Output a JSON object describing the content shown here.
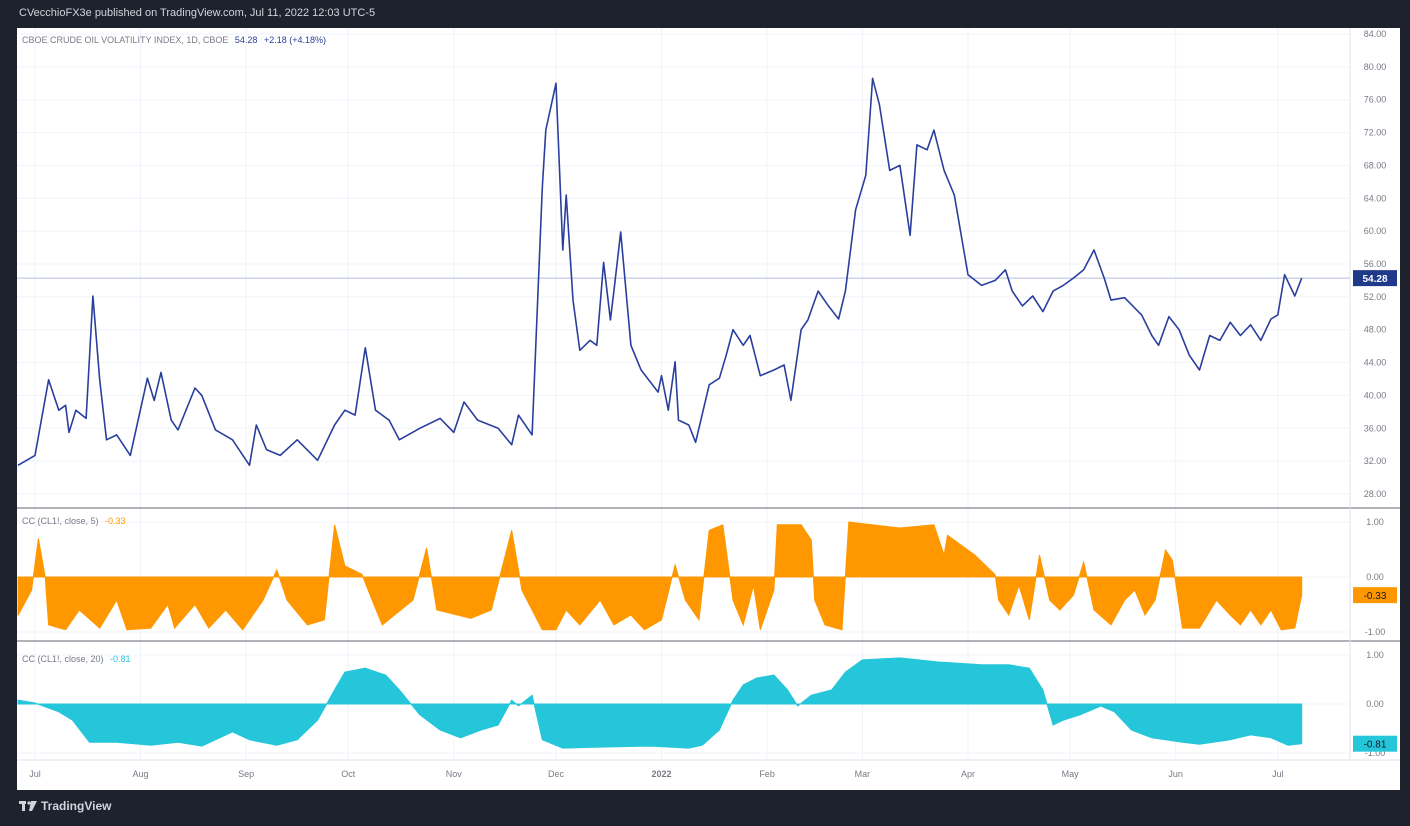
{
  "header": {
    "published": "CVecchioFX3e published on TradingView.com, Jul 11, 2022 12:03 UTC-5"
  },
  "footer": {
    "logo": "TradingView"
  },
  "colors": {
    "price": "#2a3f9d",
    "cc5": "#ff9800",
    "cc20": "#26c6da",
    "last_badge": "#1f3a8a"
  },
  "chart_data": [
    {
      "type": "line",
      "legend": {
        "title": "CBOE CRUDE OIL VOLATILITY INDEX, 1D, CBOE",
        "last": "54.28",
        "change": "+2.18 (+4.18%)"
      },
      "last_value_label": "54.28",
      "ylim": [
        27,
        85
      ],
      "yticks": [
        "28.00",
        "32.00",
        "36.00",
        "40.00",
        "44.00",
        "48.00",
        "52.00",
        "56.00",
        "60.00",
        "64.00",
        "68.00",
        "72.00",
        "76.00",
        "80.00",
        "84.00"
      ],
      "last_value": 54.28,
      "points": [
        [
          "2021-06-26",
          31.5
        ],
        [
          "2021-07-01",
          32.7
        ],
        [
          "2021-07-05",
          41.9
        ],
        [
          "2021-07-08",
          38.2
        ],
        [
          "2021-07-10",
          38.8
        ],
        [
          "2021-07-11",
          35.5
        ],
        [
          "2021-07-13",
          38.2
        ],
        [
          "2021-07-16",
          37.2
        ],
        [
          "2021-07-18",
          52.1
        ],
        [
          "2021-07-20",
          41.9
        ],
        [
          "2021-07-22",
          34.6
        ],
        [
          "2021-07-25",
          35.2
        ],
        [
          "2021-07-29",
          32.7
        ],
        [
          "2021-08-03",
          42.1
        ],
        [
          "2021-08-05",
          39.4
        ],
        [
          "2021-08-07",
          42.8
        ],
        [
          "2021-08-10",
          37.0
        ],
        [
          "2021-08-12",
          35.8
        ],
        [
          "2021-08-17",
          40.9
        ],
        [
          "2021-08-19",
          40.0
        ],
        [
          "2021-08-23",
          35.8
        ],
        [
          "2021-08-28",
          34.6
        ],
        [
          "2021-09-02",
          31.5
        ],
        [
          "2021-09-04",
          36.4
        ],
        [
          "2021-09-07",
          33.4
        ],
        [
          "2021-09-11",
          32.7
        ],
        [
          "2021-09-16",
          34.6
        ],
        [
          "2021-09-22",
          32.1
        ],
        [
          "2021-09-27",
          36.4
        ],
        [
          "2021-09-30",
          38.2
        ],
        [
          "2021-10-03",
          37.6
        ],
        [
          "2021-10-06",
          45.8
        ],
        [
          "2021-10-09",
          38.2
        ],
        [
          "2021-10-13",
          37.0
        ],
        [
          "2021-10-16",
          34.6
        ],
        [
          "2021-10-22",
          36.0
        ],
        [
          "2021-10-28",
          37.2
        ],
        [
          "2021-11-01",
          35.5
        ],
        [
          "2021-11-04",
          39.2
        ],
        [
          "2021-11-08",
          37.0
        ],
        [
          "2021-11-14",
          36.0
        ],
        [
          "2021-11-18",
          34.0
        ],
        [
          "2021-11-20",
          37.6
        ],
        [
          "2021-11-24",
          35.2
        ],
        [
          "2021-11-27",
          65.3
        ],
        [
          "2021-11-28",
          72.3
        ],
        [
          "2021-12-01",
          78.0
        ],
        [
          "2021-12-03",
          57.7
        ],
        [
          "2021-12-04",
          64.4
        ],
        [
          "2021-12-06",
          51.6
        ],
        [
          "2021-12-08",
          45.5
        ],
        [
          "2021-12-11",
          46.7
        ],
        [
          "2021-12-13",
          46.1
        ],
        [
          "2021-12-15",
          56.2
        ],
        [
          "2021-12-17",
          49.2
        ],
        [
          "2021-12-18",
          52.7
        ],
        [
          "2021-12-20",
          59.9
        ],
        [
          "2021-12-23",
          46.1
        ],
        [
          "2021-12-26",
          43.1
        ],
        [
          "2021-12-31",
          40.4
        ],
        [
          "2022-01-01",
          42.4
        ],
        [
          "2022-01-03",
          38.2
        ],
        [
          "2022-01-05",
          44.1
        ],
        [
          "2022-01-06",
          37.0
        ],
        [
          "2022-01-09",
          36.4
        ],
        [
          "2022-01-11",
          34.3
        ],
        [
          "2022-01-15",
          41.3
        ],
        [
          "2022-01-18",
          42.1
        ],
        [
          "2022-01-20",
          44.9
        ],
        [
          "2022-01-22",
          48.0
        ],
        [
          "2022-01-25",
          46.1
        ],
        [
          "2022-01-27",
          47.3
        ],
        [
          "2022-01-30",
          42.4
        ],
        [
          "2022-02-03",
          43.1
        ],
        [
          "2022-02-06",
          43.7
        ],
        [
          "2022-02-08",
          39.4
        ],
        [
          "2022-02-11",
          48.0
        ],
        [
          "2022-02-13",
          49.2
        ],
        [
          "2022-02-16",
          52.7
        ],
        [
          "2022-02-19",
          50.9
        ],
        [
          "2022-02-22",
          49.3
        ],
        [
          "2022-02-24",
          52.7
        ],
        [
          "2022-02-27",
          62.6
        ],
        [
          "2022-03-02",
          66.8
        ],
        [
          "2022-03-04",
          78.6
        ],
        [
          "2022-03-06",
          75.4
        ],
        [
          "2022-03-09",
          67.4
        ],
        [
          "2022-03-12",
          68.0
        ],
        [
          "2022-03-15",
          59.5
        ],
        [
          "2022-03-17",
          70.5
        ],
        [
          "2022-03-20",
          69.9
        ],
        [
          "2022-03-22",
          72.3
        ],
        [
          "2022-03-25",
          67.4
        ],
        [
          "2022-03-28",
          64.4
        ],
        [
          "2022-04-01",
          54.7
        ],
        [
          "2022-04-05",
          53.4
        ],
        [
          "2022-04-09",
          54.0
        ],
        [
          "2022-04-12",
          55.3
        ],
        [
          "2022-04-14",
          52.7
        ],
        [
          "2022-04-17",
          50.9
        ],
        [
          "2022-04-20",
          52.1
        ],
        [
          "2022-04-23",
          50.2
        ],
        [
          "2022-04-26",
          52.7
        ],
        [
          "2022-04-29",
          53.4
        ],
        [
          "2022-05-02",
          54.3
        ],
        [
          "2022-05-05",
          55.3
        ],
        [
          "2022-05-08",
          57.7
        ],
        [
          "2022-05-11",
          54.3
        ],
        [
          "2022-05-13",
          51.6
        ],
        [
          "2022-05-17",
          51.9
        ],
        [
          "2022-05-22",
          49.8
        ],
        [
          "2022-05-25",
          47.3
        ],
        [
          "2022-05-27",
          46.1
        ],
        [
          "2022-05-30",
          49.6
        ],
        [
          "2022-06-02",
          48.0
        ],
        [
          "2022-06-05",
          44.9
        ],
        [
          "2022-06-08",
          43.1
        ],
        [
          "2022-06-11",
          47.3
        ],
        [
          "2022-06-14",
          46.7
        ],
        [
          "2022-06-17",
          48.9
        ],
        [
          "2022-06-20",
          47.3
        ],
        [
          "2022-06-23",
          48.6
        ],
        [
          "2022-06-26",
          46.7
        ],
        [
          "2022-06-29",
          49.3
        ],
        [
          "2022-07-01",
          49.8
        ],
        [
          "2022-07-03",
          54.7
        ],
        [
          "2022-07-06",
          52.1
        ],
        [
          "2022-07-08",
          54.28
        ]
      ]
    },
    {
      "type": "area",
      "legend": {
        "title": "CC (CL1!, close, 5)",
        "last": "-0.33"
      },
      "last_value_label": "-0.33",
      "ylim": [
        -1.1,
        1.1
      ],
      "yticks": [
        "-1.00",
        "0.00",
        "1.00"
      ],
      "last_value": -0.33,
      "points": [
        [
          "2021-06-26",
          -0.7
        ],
        [
          "2021-06-30",
          -0.24
        ],
        [
          "2021-07-02",
          0.7
        ],
        [
          "2021-07-04",
          0
        ],
        [
          "2021-07-05",
          -0.87
        ],
        [
          "2021-07-10",
          -0.96
        ],
        [
          "2021-07-14",
          -0.6
        ],
        [
          "2021-07-20",
          -0.93
        ],
        [
          "2021-07-25",
          -0.42
        ],
        [
          "2021-07-28",
          -0.96
        ],
        [
          "2021-08-04",
          -0.93
        ],
        [
          "2021-08-09",
          -0.5
        ],
        [
          "2021-08-11",
          -0.93
        ],
        [
          "2021-08-17",
          -0.5
        ],
        [
          "2021-08-21",
          -0.93
        ],
        [
          "2021-08-26",
          -0.6
        ],
        [
          "2021-08-31",
          -0.96
        ],
        [
          "2021-09-06",
          -0.42
        ],
        [
          "2021-09-10",
          0.13
        ],
        [
          "2021-09-13",
          -0.42
        ],
        [
          "2021-09-19",
          -0.87
        ],
        [
          "2021-09-24",
          -0.78
        ],
        [
          "2021-09-27",
          0.95
        ],
        [
          "2021-09-30",
          0.2
        ],
        [
          "2021-10-05",
          0.05
        ],
        [
          "2021-10-08",
          -0.42
        ],
        [
          "2021-10-11",
          -0.87
        ],
        [
          "2021-10-20",
          -0.42
        ],
        [
          "2021-10-24",
          0.53
        ],
        [
          "2021-10-27",
          -0.6
        ],
        [
          "2021-11-06",
          -0.75
        ],
        [
          "2021-11-12",
          -0.6
        ],
        [
          "2021-11-18",
          0.85
        ],
        [
          "2021-11-21",
          -0.24
        ],
        [
          "2021-11-27",
          -0.96
        ],
        [
          "2021-12-01",
          -0.96
        ],
        [
          "2021-12-04",
          -0.6
        ],
        [
          "2021-12-08",
          -0.87
        ],
        [
          "2021-12-14",
          -0.42
        ],
        [
          "2021-12-18",
          -0.87
        ],
        [
          "2021-12-23",
          -0.69
        ],
        [
          "2021-12-27",
          -0.96
        ],
        [
          "2022-01-01",
          -0.78
        ],
        [
          "2022-01-05",
          0.22
        ],
        [
          "2022-01-08",
          -0.42
        ],
        [
          "2022-01-12",
          -0.78
        ],
        [
          "2022-01-15",
          0.85
        ],
        [
          "2022-01-19",
          0.95
        ],
        [
          "2022-01-22",
          -0.42
        ],
        [
          "2022-01-25",
          -0.87
        ],
        [
          "2022-01-28",
          -0.15
        ],
        [
          "2022-01-30",
          -0.96
        ],
        [
          "2022-02-03",
          -0.24
        ],
        [
          "2022-02-04",
          0.95
        ],
        [
          "2022-02-11",
          0.95
        ],
        [
          "2022-02-14",
          0.67
        ],
        [
          "2022-02-15",
          -0.42
        ],
        [
          "2022-02-18",
          -0.87
        ],
        [
          "2022-02-23",
          -0.96
        ],
        [
          "2022-02-25",
          1.0
        ],
        [
          "2022-03-12",
          0.89
        ],
        [
          "2022-03-22",
          0.95
        ],
        [
          "2022-03-25",
          0.4
        ],
        [
          "2022-03-26",
          0.76
        ],
        [
          "2022-04-03",
          0.4
        ],
        [
          "2022-04-09",
          0.04
        ],
        [
          "2022-04-10",
          -0.42
        ],
        [
          "2022-04-13",
          -0.69
        ],
        [
          "2022-04-16",
          -0.15
        ],
        [
          "2022-04-19",
          -0.78
        ],
        [
          "2022-04-22",
          0.4
        ],
        [
          "2022-04-25",
          -0.42
        ],
        [
          "2022-04-28",
          -0.6
        ],
        [
          "2022-05-02",
          -0.33
        ],
        [
          "2022-05-05",
          0.27
        ],
        [
          "2022-05-08",
          -0.6
        ],
        [
          "2022-05-13",
          -0.87
        ],
        [
          "2022-05-17",
          -0.42
        ],
        [
          "2022-05-20",
          -0.24
        ],
        [
          "2022-05-23",
          -0.69
        ],
        [
          "2022-05-26",
          -0.42
        ],
        [
          "2022-05-29",
          0.49
        ],
        [
          "2022-05-31",
          0.31
        ],
        [
          "2022-06-03",
          -0.93
        ],
        [
          "2022-06-08",
          -0.93
        ],
        [
          "2022-06-13",
          -0.42
        ],
        [
          "2022-06-17",
          -0.69
        ],
        [
          "2022-06-20",
          -0.87
        ],
        [
          "2022-06-23",
          -0.6
        ],
        [
          "2022-06-26",
          -0.87
        ],
        [
          "2022-06-29",
          -0.6
        ],
        [
          "2022-07-02",
          -0.96
        ],
        [
          "2022-07-06",
          -0.93
        ],
        [
          "2022-07-08",
          -0.33
        ]
      ]
    },
    {
      "type": "area",
      "legend": {
        "title": "CC (CL1!, close, 20)",
        "last": "-0.81"
      },
      "last_value_label": "-0.81",
      "ylim": [
        -1.0,
        1.0
      ],
      "yticks": [
        "-1.00",
        "0.00",
        "1.00"
      ],
      "last_value": -0.81,
      "points": [
        [
          "2021-06-26",
          0.08
        ],
        [
          "2021-07-01",
          0.02
        ],
        [
          "2021-07-08",
          -0.16
        ],
        [
          "2021-07-12",
          -0.33
        ],
        [
          "2021-07-17",
          -0.78
        ],
        [
          "2021-07-25",
          -0.78
        ],
        [
          "2021-08-04",
          -0.84
        ],
        [
          "2021-08-12",
          -0.78
        ],
        [
          "2021-08-19",
          -0.86
        ],
        [
          "2021-08-28",
          -0.57
        ],
        [
          "2021-09-02",
          -0.73
        ],
        [
          "2021-09-10",
          -0.84
        ],
        [
          "2021-09-16",
          -0.73
        ],
        [
          "2021-09-22",
          -0.33
        ],
        [
          "2021-09-27",
          0.29
        ],
        [
          "2021-09-30",
          0.65
        ],
        [
          "2021-10-06",
          0.73
        ],
        [
          "2021-10-12",
          0.59
        ],
        [
          "2021-10-16",
          0.29
        ],
        [
          "2021-10-22",
          -0.22
        ],
        [
          "2021-10-28",
          -0.53
        ],
        [
          "2021-11-03",
          -0.69
        ],
        [
          "2021-11-09",
          -0.53
        ],
        [
          "2021-11-14",
          -0.43
        ],
        [
          "2021-11-18",
          0.08
        ],
        [
          "2021-11-20",
          -0.04
        ],
        [
          "2021-11-24",
          0.18
        ],
        [
          "2021-11-27",
          -0.73
        ],
        [
          "2021-12-03",
          -0.9
        ],
        [
          "2021-12-14",
          -0.88
        ],
        [
          "2021-12-29",
          -0.86
        ],
        [
          "2022-01-09",
          -0.9
        ],
        [
          "2022-01-13",
          -0.84
        ],
        [
          "2022-01-18",
          -0.53
        ],
        [
          "2022-01-22",
          0.08
        ],
        [
          "2022-01-25",
          0.39
        ],
        [
          "2022-01-29",
          0.53
        ],
        [
          "2022-02-03",
          0.59
        ],
        [
          "2022-02-07",
          0.29
        ],
        [
          "2022-02-10",
          -0.04
        ],
        [
          "2022-02-14",
          0.18
        ],
        [
          "2022-02-20",
          0.29
        ],
        [
          "2022-02-24",
          0.65
        ],
        [
          "2022-03-01",
          0.9
        ],
        [
          "2022-03-12",
          0.94
        ],
        [
          "2022-03-23",
          0.86
        ],
        [
          "2022-04-05",
          0.8
        ],
        [
          "2022-04-13",
          0.8
        ],
        [
          "2022-04-19",
          0.73
        ],
        [
          "2022-04-23",
          0.29
        ],
        [
          "2022-04-26",
          -0.43
        ],
        [
          "2022-04-29",
          -0.33
        ],
        [
          "2022-05-04",
          -0.22
        ],
        [
          "2022-05-10",
          -0.04
        ],
        [
          "2022-05-14",
          -0.16
        ],
        [
          "2022-05-19",
          -0.53
        ],
        [
          "2022-05-25",
          -0.69
        ],
        [
          "2022-06-03",
          -0.78
        ],
        [
          "2022-06-08",
          -0.82
        ],
        [
          "2022-06-17",
          -0.73
        ],
        [
          "2022-06-23",
          -0.63
        ],
        [
          "2022-06-29",
          -0.69
        ],
        [
          "2022-07-04",
          -0.84
        ],
        [
          "2022-07-08",
          -0.81
        ]
      ]
    }
  ],
  "x_axis": {
    "ticks": [
      [
        "2021-07-01",
        "Jul"
      ],
      [
        "2021-08-01",
        "Aug"
      ],
      [
        "2021-09-01",
        "Sep"
      ],
      [
        "2021-10-01",
        "Oct"
      ],
      [
        "2021-11-01",
        "Nov"
      ],
      [
        "2021-12-01",
        "Dec"
      ],
      [
        "2022-01-01",
        "2022"
      ],
      [
        "2022-02-01",
        "Feb"
      ],
      [
        "2022-03-01",
        "Mar"
      ],
      [
        "2022-04-01",
        "Apr"
      ],
      [
        "2022-05-01",
        "May"
      ],
      [
        "2022-06-01",
        "Jun"
      ],
      [
        "2022-07-01",
        "Jul"
      ]
    ]
  }
}
